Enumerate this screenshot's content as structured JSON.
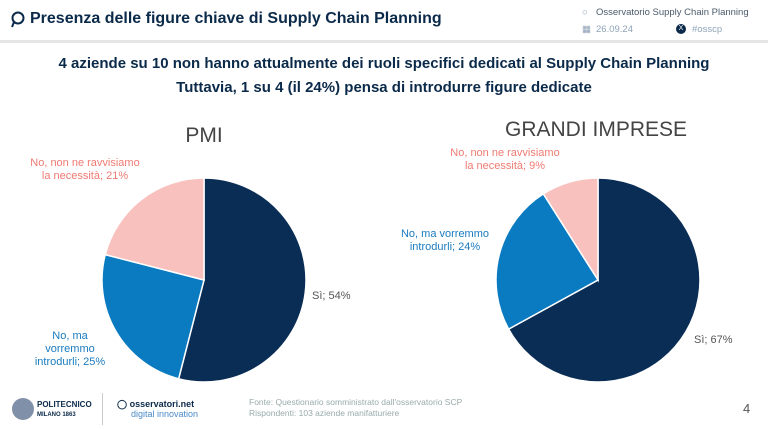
{
  "header": {
    "title": "Presenza delle figure chiave di Supply Chain Planning",
    "observatory": "Osservatorio Supply Chain Planning",
    "date": "26.09.24",
    "hashtag": "#osscp"
  },
  "subtitle": {
    "line1": "4 aziende su 10 non hanno attualmente dei ruoli specifici dedicati al Supply Chain Planning",
    "line2": "Tuttavia, 1 su 4 (il 24%) pensa di introdurre figure dedicate"
  },
  "colors": {
    "si": "#0a2d55",
    "no_ma": "#0b7bc1",
    "no_non": "#f8c1be"
  },
  "chart_data": [
    {
      "type": "pie",
      "title": "PMI",
      "slices": [
        {
          "label": "Sì; 54%",
          "value": 54
        },
        {
          "label": "No, ma vorremmo introdurli; 25%",
          "value": 25
        },
        {
          "label": "No, non ne ravvisiamo la necessità; 21%",
          "value": 21
        }
      ]
    },
    {
      "type": "pie",
      "title": "GRANDI IMPRESE",
      "slices": [
        {
          "label": "Sì; 67%",
          "value": 67
        },
        {
          "label": "No, ma vorremmo introdurli; 24%",
          "value": 24
        },
        {
          "label": "No, non ne ravvisiamo la necessità; 9%",
          "value": 9
        }
      ]
    }
  ],
  "footer": {
    "logo1": "POLITECNICO MILANO 1863",
    "logo2": "osservatori.net digital innovation",
    "source": "Fonte: Questionario somministrato dall'osservatorio SCP",
    "respondents": "Rispondenti: 103 aziende manifatturiere",
    "page": "4"
  }
}
